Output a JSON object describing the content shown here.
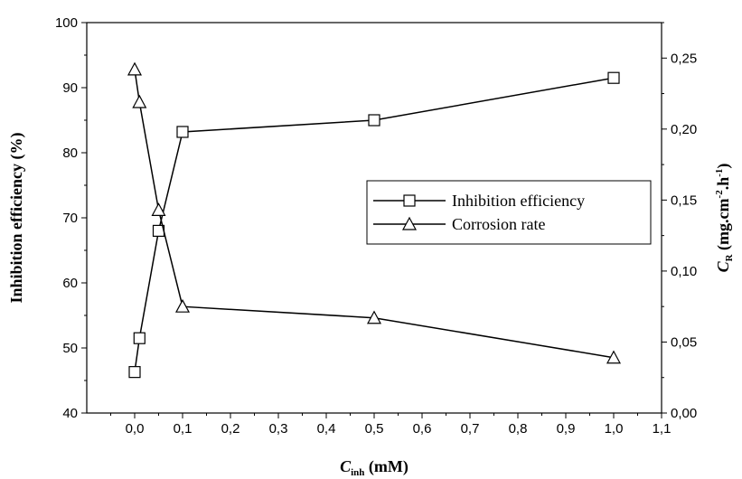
{
  "chart_data": {
    "type": "line",
    "x": [
      0.0,
      0.01,
      0.05,
      0.1,
      0.5,
      1.0
    ],
    "xlim": [
      -0.1,
      1.1
    ],
    "xticks": [
      "0,0",
      "0,1",
      "0,2",
      "0,3",
      "0,4",
      "0,5",
      "0,6",
      "0,7",
      "0,8",
      "0,9",
      "1,0",
      "1,1"
    ],
    "xlabel": {
      "main": "C",
      "sub": "inh",
      "rest": " (mM)"
    },
    "ylim_left": [
      40,
      100
    ],
    "yticks_left": [
      "40",
      "50",
      "60",
      "70",
      "80",
      "90",
      "100"
    ],
    "ylabel_left": "Inhibition efficiency (%)",
    "ylim_right": [
      0.0,
      0.275
    ],
    "yticks_right": [
      "0,00",
      "0,05",
      "0,10",
      "0,15",
      "0,20",
      "0,25"
    ],
    "ylabel_right": {
      "main": "C",
      "sub": "R",
      "p1": " (mg.cm",
      "sup1": "-2",
      "p2": ".h",
      "sup2": "-1",
      "p3": ")"
    },
    "series": [
      {
        "name": "Inhibition efficiency",
        "axis": "left",
        "marker": "square",
        "values": [
          46.3,
          51.5,
          68.0,
          83.2,
          85.0,
          91.5
        ]
      },
      {
        "name": "Corrosion rate",
        "axis": "right",
        "marker": "triangle",
        "values": [
          0.242,
          0.219,
          0.143,
          0.075,
          0.067,
          0.039
        ]
      }
    ],
    "legend": "center-right",
    "grid": false
  }
}
